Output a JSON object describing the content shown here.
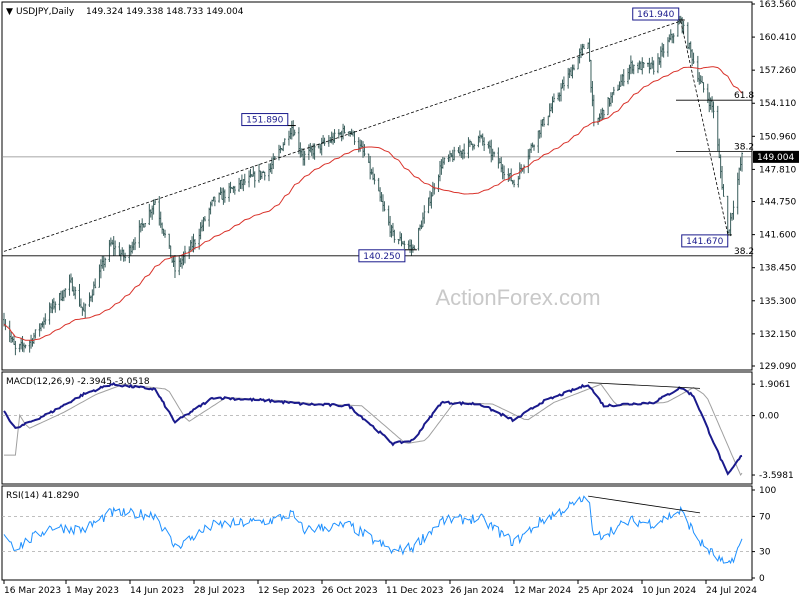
{
  "header": {
    "symbol": "USDJPY,Daily",
    "ohlc": "149.324 149.338 148.733 149.004"
  },
  "watermark": "ActionForex.com",
  "colors": {
    "candles": "#3a5e5c",
    "ma": "#d9322a",
    "macd_main": "#1a1a8c",
    "macd_signal": "#a0a0a0",
    "rsi": "#1e90ff",
    "trendline": "#000000",
    "price_tag_bg": "#000000"
  },
  "chart_data": [
    {
      "type": "line",
      "name": "price",
      "y_ticks": [
        "163.560",
        "160.410",
        "157.260",
        "154.110",
        "150.960",
        "147.810",
        "144.750",
        "141.600",
        "138.450",
        "135.300",
        "132.150",
        "129.090"
      ],
      "ylim": [
        129.09,
        163.56
      ],
      "x_labels": [
        "16 Mar 2023",
        "1 May 2023",
        "14 Jun 2023",
        "28 Jul 2023",
        "12 Sep 2023",
        "26 Oct 2023",
        "11 Dec 2023",
        "26 Jan 2024",
        "12 Mar 2024",
        "25 Apr 2024",
        "10 Jun 2024",
        "24 Jul 2024"
      ],
      "current_price": "149.004",
      "annotations": [
        {
          "label": "151.890",
          "date": "2023-10-04",
          "value": 151.89
        },
        {
          "label": "140.250",
          "date": "2023-12-28",
          "value": 140.25
        },
        {
          "label": "161.940",
          "date": "2024-07-03",
          "value": 161.94
        },
        {
          "label": "141.670",
          "date": "2024-08-05",
          "value": 141.67
        }
      ],
      "fib_labels": [
        {
          "label": "61.8",
          "value": 154.4
        },
        {
          "label": "38.2",
          "value": 149.5
        },
        {
          "label": "38.2",
          "value": 139.58
        }
      ],
      "price_path": [
        [
          "2023-03-16",
          133.5
        ],
        [
          "2023-03-24",
          130.6
        ],
        [
          "2023-04-04",
          131.5
        ],
        [
          "2023-04-18",
          134.6
        ],
        [
          "2023-05-02",
          137.0
        ],
        [
          "2023-05-11",
          134.2
        ],
        [
          "2023-05-30",
          140.7
        ],
        [
          "2023-06-09",
          139.4
        ],
        [
          "2023-06-30",
          144.8
        ],
        [
          "2023-07-14",
          138.2
        ],
        [
          "2023-07-28",
          141.0
        ],
        [
          "2023-08-10",
          144.8
        ],
        [
          "2023-08-29",
          146.4
        ],
        [
          "2023-09-19",
          147.9
        ],
        [
          "2023-10-04",
          151.89
        ],
        [
          "2023-10-12",
          149.0
        ],
        [
          "2023-11-13",
          151.7
        ],
        [
          "2023-11-24",
          149.2
        ],
        [
          "2023-12-14",
          141.5
        ],
        [
          "2023-12-28",
          140.25
        ],
        [
          "2024-01-17",
          148.3
        ],
        [
          "2024-02-13",
          150.8
        ],
        [
          "2024-03-08",
          146.5
        ],
        [
          "2024-03-27",
          151.9
        ],
        [
          "2024-04-29",
          160.2
        ],
        [
          "2024-05-03",
          151.9
        ],
        [
          "2024-05-29",
          157.7
        ],
        [
          "2024-06-14",
          157.5
        ],
        [
          "2024-07-03",
          161.94
        ],
        [
          "2024-07-17",
          156.0
        ],
        [
          "2024-07-26",
          153.5
        ],
        [
          "2024-08-05",
          141.67
        ],
        [
          "2024-08-15",
          149.0
        ]
      ],
      "trendlines": [
        {
          "from": [
            "2023-03-16",
            140.0
          ],
          "to": [
            "2024-07-03",
            161.94
          ]
        },
        {
          "from": [
            "2024-07-03",
            161.94
          ],
          "to": [
            "2024-08-05",
            141.67
          ]
        }
      ]
    },
    {
      "type": "line",
      "name": "MACD(12,26,9)",
      "label": "MACD(12,26,9) -2.3945 -3.0518",
      "y_ticks": [
        "1.9061",
        "0.00",
        "-3.5981"
      ],
      "ylim": [
        -3.9,
        2.4
      ],
      "path": [
        [
          "2023-03-16",
          0.3
        ],
        [
          "2023-03-24",
          -0.8
        ],
        [
          "2023-04-18",
          0.2
        ],
        [
          "2023-05-11",
          1.3
        ],
        [
          "2023-05-30",
          1.9
        ],
        [
          "2023-06-30",
          1.6
        ],
        [
          "2023-07-14",
          -0.4
        ],
        [
          "2023-08-10",
          1.1
        ],
        [
          "2023-09-19",
          0.9
        ],
        [
          "2023-10-12",
          0.7
        ],
        [
          "2023-11-13",
          0.6
        ],
        [
          "2023-12-14",
          -1.7
        ],
        [
          "2023-12-28",
          -1.5
        ],
        [
          "2024-01-17",
          0.8
        ],
        [
          "2024-02-13",
          0.7
        ],
        [
          "2024-03-08",
          -0.3
        ],
        [
          "2024-03-27",
          0.8
        ],
        [
          "2024-04-29",
          1.9
        ],
        [
          "2024-05-10",
          0.6
        ],
        [
          "2024-06-14",
          0.8
        ],
        [
          "2024-07-03",
          1.7
        ],
        [
          "2024-07-12",
          1.2
        ],
        [
          "2024-08-05",
          -3.6
        ],
        [
          "2024-08-15",
          -2.39
        ]
      ]
    },
    {
      "type": "line",
      "name": "RSI(14)",
      "label": "RSI(14) 41.8290",
      "y_ticks": [
        "100",
        "70",
        "30",
        "0"
      ],
      "ylim": [
        0,
        100
      ],
      "path": [
        [
          "2023-03-16",
          52
        ],
        [
          "2023-03-24",
          34
        ],
        [
          "2023-04-18",
          58
        ],
        [
          "2023-05-11",
          55
        ],
        [
          "2023-05-30",
          74
        ],
        [
          "2023-06-30",
          72
        ],
        [
          "2023-07-14",
          35
        ],
        [
          "2023-08-10",
          60
        ],
        [
          "2023-09-19",
          65
        ],
        [
          "2023-10-04",
          73
        ],
        [
          "2023-10-12",
          55
        ],
        [
          "2023-11-13",
          60
        ],
        [
          "2023-12-14",
          30
        ],
        [
          "2023-12-28",
          35
        ],
        [
          "2024-01-17",
          65
        ],
        [
          "2024-02-13",
          68
        ],
        [
          "2024-03-08",
          40
        ],
        [
          "2024-03-27",
          65
        ],
        [
          "2024-04-29",
          92
        ],
        [
          "2024-05-03",
          45
        ],
        [
          "2024-05-29",
          65
        ],
        [
          "2024-06-14",
          62
        ],
        [
          "2024-07-03",
          76
        ],
        [
          "2024-07-17",
          40
        ],
        [
          "2024-08-05",
          12
        ],
        [
          "2024-08-15",
          41.83
        ]
      ]
    }
  ]
}
